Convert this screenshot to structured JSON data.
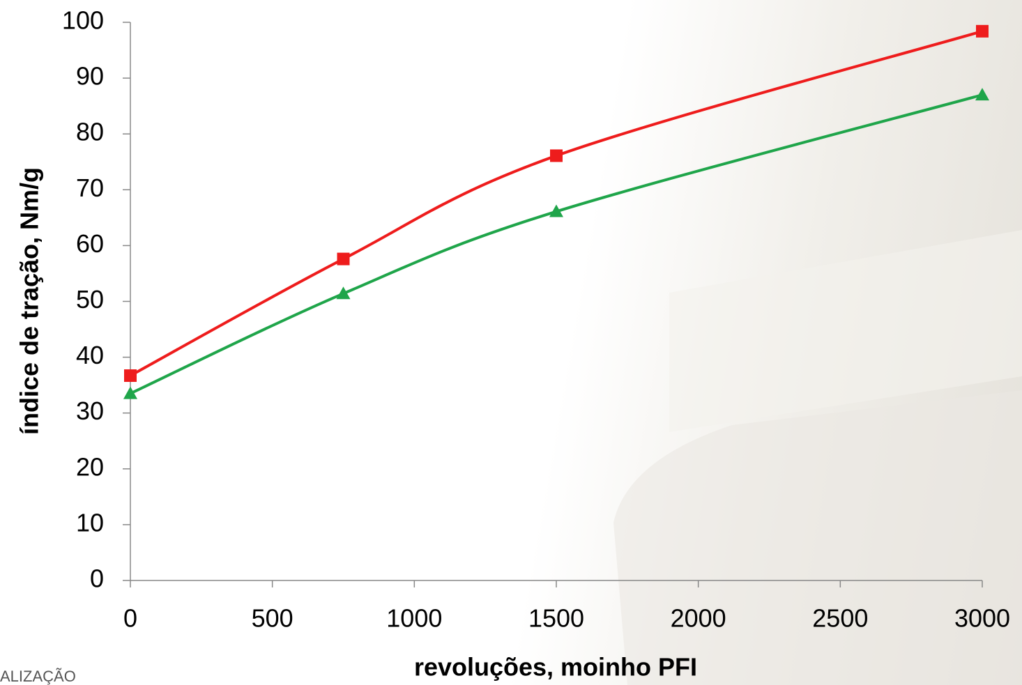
{
  "chart_data": {
    "type": "line",
    "y_label": "índice de tração, Nm/g",
    "x_label": "revoluções,  moinho PFI",
    "x": [
      0,
      750,
      1500,
      3000
    ],
    "series": [
      {
        "color": "#ee1c1c",
        "marker": "square",
        "values": [
          36.7,
          57.6,
          76.1,
          98.4
        ]
      },
      {
        "color": "#1fa54a",
        "marker": "triangle",
        "values": [
          33.5,
          51.4,
          66.1,
          87.0
        ]
      }
    ],
    "xlim": [
      0,
      3000
    ],
    "xticks": [
      0,
      500,
      1000,
      1500,
      2000,
      2500,
      3000
    ],
    "ylim": [
      0,
      100
    ],
    "yticks": [
      0,
      10,
      20,
      30,
      40,
      50,
      60,
      70,
      80,
      90,
      100
    ],
    "grid": false
  },
  "footer_text": "ALIZAÇÃO"
}
